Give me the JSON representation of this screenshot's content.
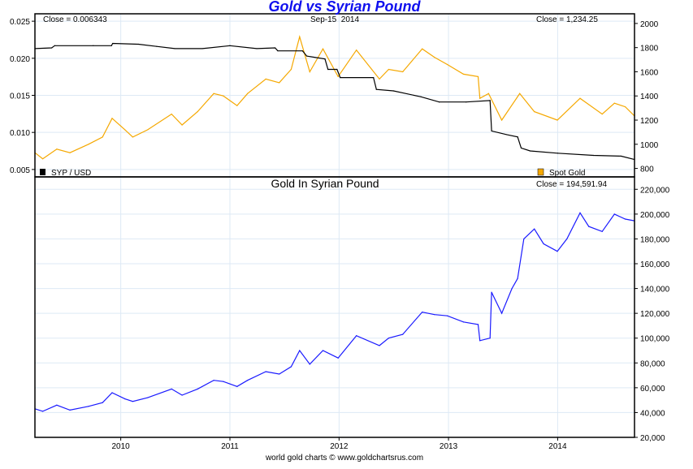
{
  "chart_data": [
    {
      "type": "line",
      "title": "Gold vs Syrian Pound",
      "date_label": "Sep-15  2014",
      "left_close": "Close = 0.006343",
      "right_close": "Close = 1,234.25",
      "left_axis": {
        "ylim": [
          0.004,
          0.026
        ],
        "ticks": [
          "0.005",
          "0.010",
          "0.015",
          "0.020",
          "0.025"
        ]
      },
      "right_axis": {
        "ylim": [
          730,
          2080
        ],
        "ticks": [
          "800",
          "1000",
          "1200",
          "1400",
          "1600",
          "1800",
          "2000"
        ]
      },
      "grid": true,
      "series": [
        {
          "name": "SYP / USD",
          "axis": "left",
          "color": "#000000",
          "legend": "bottom-left",
          "points": [
            [
              "2009-03-20",
              0.0213
            ],
            [
              "2009-05-15",
              0.0214
            ],
            [
              "2009-05-25",
              0.0217
            ],
            [
              "2009-10-01",
              0.0217
            ],
            [
              "2009-12-01",
              0.0217
            ],
            [
              "2009-12-05",
              0.022
            ],
            [
              "2010-03-01",
              0.0219
            ],
            [
              "2010-05-01",
              0.0216
            ],
            [
              "2010-07-01",
              0.0213
            ],
            [
              "2010-10-01",
              0.0213
            ],
            [
              "2011-01-01",
              0.0217
            ],
            [
              "2011-04-01",
              0.0213
            ],
            [
              "2011-06-01",
              0.0214
            ],
            [
              "2011-06-10",
              0.021
            ],
            [
              "2011-09-01",
              0.021
            ],
            [
              "2011-09-15",
              0.0203
            ],
            [
              "2011-11-15",
              0.0199
            ],
            [
              "2011-11-25",
              0.0185
            ],
            [
              "2011-12-25",
              0.0185
            ],
            [
              "2012-01-05",
              0.0174
            ],
            [
              "2012-04-25",
              0.0174
            ],
            [
              "2012-05-05",
              0.0158
            ],
            [
              "2012-07-01",
              0.0156
            ],
            [
              "2012-10-01",
              0.0148
            ],
            [
              "2012-12-01",
              0.0141
            ],
            [
              "2013-03-01",
              0.0141
            ],
            [
              "2013-05-20",
              0.0143
            ],
            [
              "2013-05-25",
              0.0102
            ],
            [
              "2013-07-15",
              0.0097
            ],
            [
              "2013-08-20",
              0.0094
            ],
            [
              "2013-09-01",
              0.0079
            ],
            [
              "2013-10-01",
              0.0075
            ],
            [
              "2014-01-01",
              0.0072
            ],
            [
              "2014-05-01",
              0.0069
            ],
            [
              "2014-08-01",
              0.0068
            ],
            [
              "2014-09-15",
              0.006343
            ]
          ]
        },
        {
          "name": "Spot Gold",
          "axis": "right",
          "color": "#f5a800",
          "legend": "bottom-right",
          "points": [
            [
              "2009-03-20",
              930
            ],
            [
              "2009-04-15",
              880
            ],
            [
              "2009-06-01",
              960
            ],
            [
              "2009-07-15",
              930
            ],
            [
              "2009-09-15",
              1000
            ],
            [
              "2009-11-01",
              1060
            ],
            [
              "2009-12-03",
              1215
            ],
            [
              "2010-01-15",
              1120
            ],
            [
              "2010-02-10",
              1060
            ],
            [
              "2010-04-01",
              1120
            ],
            [
              "2010-06-20",
              1250
            ],
            [
              "2010-07-25",
              1160
            ],
            [
              "2010-09-15",
              1270
            ],
            [
              "2010-11-08",
              1420
            ],
            [
              "2010-12-10",
              1400
            ],
            [
              "2011-01-25",
              1320
            ],
            [
              "2011-03-01",
              1420
            ],
            [
              "2011-05-01",
              1540
            ],
            [
              "2011-06-15",
              1510
            ],
            [
              "2011-07-25",
              1620
            ],
            [
              "2011-08-22",
              1890
            ],
            [
              "2011-09-25",
              1600
            ],
            [
              "2011-11-08",
              1790
            ],
            [
              "2011-12-29",
              1560
            ],
            [
              "2012-02-28",
              1780
            ],
            [
              "2012-05-15",
              1540
            ],
            [
              "2012-06-15",
              1620
            ],
            [
              "2012-08-01",
              1600
            ],
            [
              "2012-10-05",
              1790
            ],
            [
              "2012-11-15",
              1720
            ],
            [
              "2012-12-28",
              1660
            ],
            [
              "2013-02-20",
              1580
            ],
            [
              "2013-04-10",
              1560
            ],
            [
              "2013-04-16",
              1380
            ],
            [
              "2013-05-15",
              1420
            ],
            [
              "2013-06-28",
              1200
            ],
            [
              "2013-08-27",
              1420
            ],
            [
              "2013-10-15",
              1270
            ],
            [
              "2013-12-31",
              1200
            ],
            [
              "2014-03-17",
              1380
            ],
            [
              "2014-05-30",
              1250
            ],
            [
              "2014-07-10",
              1340
            ],
            [
              "2014-08-15",
              1310
            ],
            [
              "2014-09-15",
              1234.25
            ]
          ]
        }
      ]
    },
    {
      "type": "line",
      "title": "Gold In Syrian Pound",
      "close": "Close = 194,591.94",
      "ylim": [
        20000,
        230000
      ],
      "yticks": [
        "20,000",
        "40,000",
        "60,000",
        "80,000",
        "100,000",
        "120,000",
        "140,000",
        "160,000",
        "180,000",
        "200,000",
        "220,000"
      ],
      "xlim": [
        "2009-03-20",
        "2014-09-15"
      ],
      "xticks": [
        "2010",
        "2011",
        "2012",
        "2013",
        "2014"
      ],
      "grid": true,
      "series": [
        {
          "color": "#1a1aff",
          "points": [
            [
              "2009-03-20",
              43000
            ],
            [
              "2009-04-15",
              41000
            ],
            [
              "2009-06-01",
              46000
            ],
            [
              "2009-07-15",
              42000
            ],
            [
              "2009-09-15",
              45000
            ],
            [
              "2009-11-01",
              48000
            ],
            [
              "2009-12-03",
              56000
            ],
            [
              "2010-01-15",
              51000
            ],
            [
              "2010-02-10",
              49000
            ],
            [
              "2010-04-01",
              52000
            ],
            [
              "2010-06-20",
              59000
            ],
            [
              "2010-07-25",
              54000
            ],
            [
              "2010-09-15",
              59000
            ],
            [
              "2010-11-08",
              66000
            ],
            [
              "2010-12-10",
              65000
            ],
            [
              "2011-01-25",
              61000
            ],
            [
              "2011-03-01",
              66000
            ],
            [
              "2011-05-01",
              73000
            ],
            [
              "2011-06-15",
              71000
            ],
            [
              "2011-07-25",
              77000
            ],
            [
              "2011-08-22",
              90000
            ],
            [
              "2011-09-25",
              79000
            ],
            [
              "2011-11-08",
              90000
            ],
            [
              "2011-12-29",
              84000
            ],
            [
              "2012-02-28",
              102000
            ],
            [
              "2012-05-15",
              94000
            ],
            [
              "2012-06-15",
              100000
            ],
            [
              "2012-08-01",
              103000
            ],
            [
              "2012-10-05",
              121000
            ],
            [
              "2012-11-15",
              119000
            ],
            [
              "2012-12-28",
              118000
            ],
            [
              "2013-02-20",
              113000
            ],
            [
              "2013-04-10",
              111000
            ],
            [
              "2013-04-16",
              98000
            ],
            [
              "2013-05-20",
              100000
            ],
            [
              "2013-05-25",
              137000
            ],
            [
              "2013-06-28",
              120000
            ],
            [
              "2013-08-01",
              140000
            ],
            [
              "2013-08-20",
              148000
            ],
            [
              "2013-09-10",
              180000
            ],
            [
              "2013-10-15",
              188000
            ],
            [
              "2013-11-15",
              176000
            ],
            [
              "2013-12-31",
              170000
            ],
            [
              "2014-02-01",
              180000
            ],
            [
              "2014-03-17",
              201000
            ],
            [
              "2014-04-15",
              190000
            ],
            [
              "2014-05-30",
              186000
            ],
            [
              "2014-07-10",
              200000
            ],
            [
              "2014-08-15",
              196000
            ],
            [
              "2014-09-15",
              194591.94
            ]
          ]
        }
      ]
    }
  ],
  "footer": "world gold charts © www.goldchartsrus.com"
}
